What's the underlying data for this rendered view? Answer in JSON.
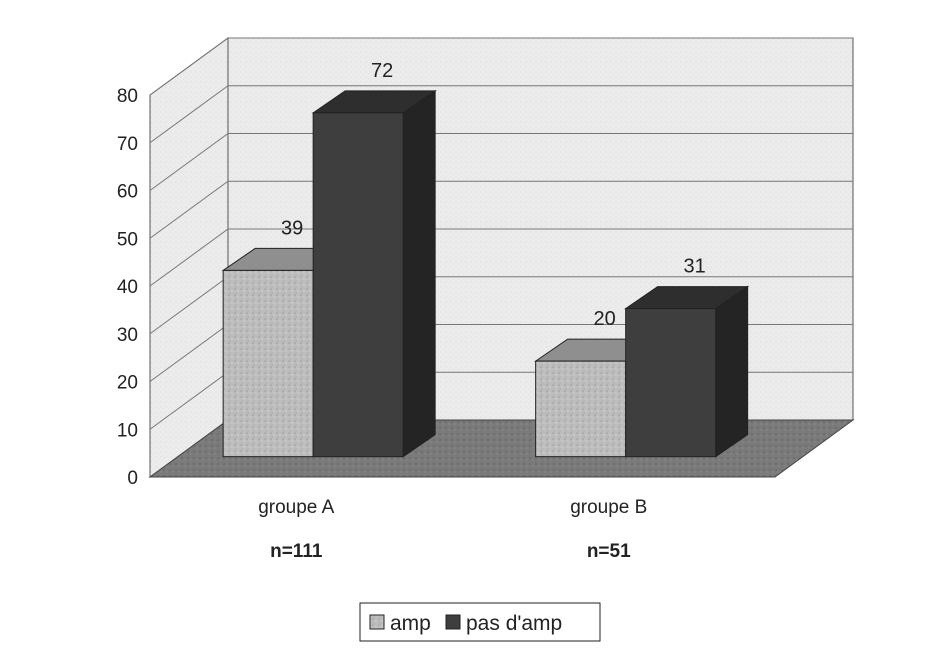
{
  "chart_data": {
    "type": "bar",
    "style": "3d-clustered-column",
    "categories": [
      "groupe A",
      "groupe B"
    ],
    "category_sublabels": [
      "n=111",
      "n=51"
    ],
    "series": [
      {
        "name": "amp",
        "values": [
          39,
          20
        ],
        "color": "#b9b9b9"
      },
      {
        "name": "pas d'amp",
        "values": [
          72,
          31
        ],
        "color": "#3e3e3e"
      }
    ],
    "ylim": [
      0,
      80
    ],
    "yticks": [
      0,
      10,
      20,
      30,
      40,
      50,
      60,
      70,
      80
    ],
    "grid": true,
    "legend_position": "bottom-center",
    "title": "",
    "xlabel": "",
    "ylabel": ""
  }
}
